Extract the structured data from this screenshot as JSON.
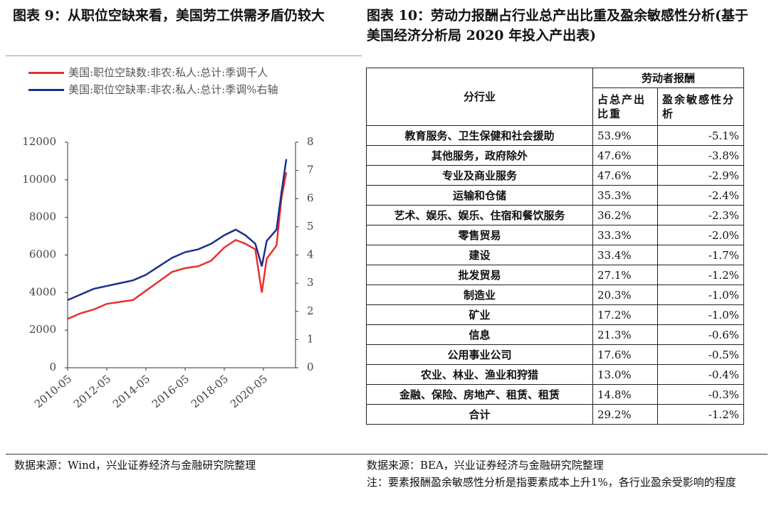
{
  "left": {
    "title": "图表 9：从职位空缺来看，美国劳工供需矛盾仍较大",
    "chart_data": {
      "type": "line",
      "x": [
        "2010-05",
        "2011-01",
        "2011-09",
        "2012-05",
        "2013-01",
        "2013-09",
        "2014-05",
        "2015-01",
        "2015-09",
        "2016-05",
        "2017-01",
        "2017-09",
        "2018-05",
        "2018-12",
        "2019-06",
        "2019-12",
        "2020-04",
        "2020-07",
        "2021-01",
        "2021-04",
        "2021-07"
      ],
      "series": [
        {
          "name": "美国:职位空缺数:非农:私人:总计:季调千人",
          "color": "#e8312f",
          "values": [
            2600,
            2900,
            3100,
            3400,
            3500,
            3600,
            4100,
            4600,
            5100,
            5300,
            5400,
            5700,
            6400,
            6800,
            6600,
            6300,
            4000,
            5800,
            6500,
            9000,
            10400
          ]
        },
        {
          "name": "美国:职位空缺率:非农:私人:总计:季调%右轴",
          "color": "#1c2f8c",
          "axis": "y2",
          "values": [
            2.4,
            2.6,
            2.8,
            2.9,
            3.0,
            3.1,
            3.3,
            3.6,
            3.9,
            4.1,
            4.2,
            4.4,
            4.7,
            4.9,
            4.7,
            4.4,
            3.6,
            4.5,
            4.9,
            6.2,
            7.4
          ]
        }
      ],
      "ylim": [
        0,
        12000
      ],
      "yticks": [
        0,
        2000,
        4000,
        6000,
        8000,
        10000,
        12000
      ],
      "y2lim": [
        0,
        8
      ],
      "y2ticks": [
        0,
        1,
        2,
        3,
        4,
        5,
        6,
        7,
        8
      ],
      "xticks": [
        "2010-05",
        "2012-05",
        "2014-05",
        "2016-05",
        "2018-05",
        "2020-05"
      ]
    },
    "source": "数据来源：Wind，兴业证券经济与金融研究院整理"
  },
  "right": {
    "title": "图表 10：劳动力报酬占行业总产出比重及盈余敏感性分析(基于美国经济分析局 2020 年投入产出表)",
    "table": {
      "header": [
        "分行业",
        "劳动者报酬",
        "占总产出比重",
        "盈余敏感性分析"
      ],
      "rows": [
        [
          "教育服务、卫生保健和社会援助",
          "53.9%",
          "-5.1%"
        ],
        [
          "其他服务，政府除外",
          "47.6%",
          "-3.8%"
        ],
        [
          "专业及商业服务",
          "47.6%",
          "-2.9%"
        ],
        [
          "运输和仓储",
          "35.3%",
          "-2.4%"
        ],
        [
          "艺术、娱乐、娱乐、住宿和餐饮服务",
          "36.2%",
          "-2.3%"
        ],
        [
          "零售贸易",
          "33.3%",
          "-2.0%"
        ],
        [
          "建设",
          "33.4%",
          "-1.7%"
        ],
        [
          "批发贸易",
          "27.1%",
          "-1.2%"
        ],
        [
          "制造业",
          "20.3%",
          "-1.0%"
        ],
        [
          "矿业",
          "17.2%",
          "-1.0%"
        ],
        [
          "信息",
          "21.3%",
          "-0.6%"
        ],
        [
          "公用事业公司",
          "17.6%",
          "-0.5%"
        ],
        [
          "农业、林业、渔业和狩猎",
          "13.0%",
          "-0.4%"
        ],
        [
          "金融、保险、房地产、租赁、租赁",
          "14.8%",
          "-0.3%"
        ],
        [
          "合计",
          "29.2%",
          "-1.2%"
        ]
      ]
    },
    "source": "数据来源：BEA，兴业证券经济与金融研究院整理",
    "note": "注：要素报酬盈余敏感性分析是指要素成本上升1%，各行业盈余受影响的程度"
  }
}
